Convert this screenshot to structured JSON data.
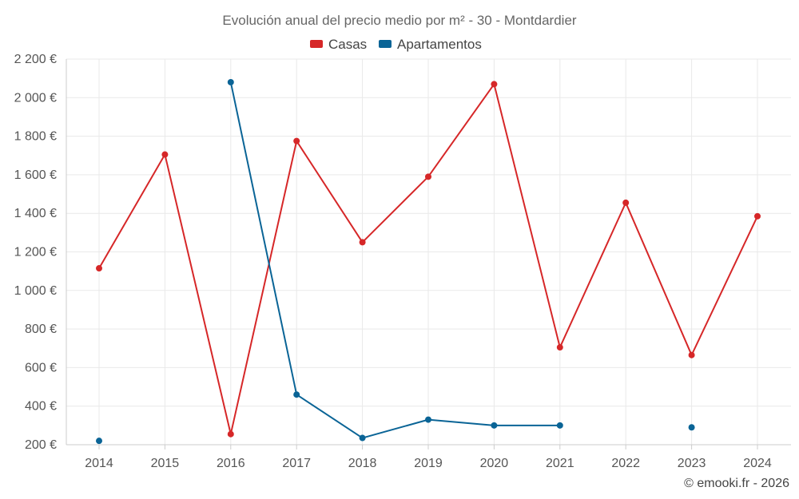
{
  "chart_data": {
    "type": "line",
    "title": "Evolución anual del precio medio por m² - 30 - Montdardier",
    "x": [
      "2014",
      "2015",
      "2016",
      "2017",
      "2018",
      "2019",
      "2020",
      "2021",
      "2022",
      "2023",
      "2024"
    ],
    "ylim": [
      200,
      2200
    ],
    "yticks": [
      200,
      400,
      600,
      800,
      1000,
      1200,
      1400,
      1600,
      1800,
      2000,
      2200
    ],
    "ytick_labels": [
      "200 €",
      "400 €",
      "600 €",
      "800 €",
      "1 000 €",
      "1 200 €",
      "1 400 €",
      "1 600 €",
      "1 800 €",
      "2 000 €",
      "2 200 €"
    ],
    "grid": true,
    "legend_position": "top-center",
    "series": [
      {
        "name": "Casas",
        "color": "#d62728",
        "values": [
          1115,
          1705,
          255,
          1775,
          1250,
          1590,
          2070,
          705,
          1455,
          665,
          1385
        ]
      },
      {
        "name": "Apartamentos",
        "color": "#0a6496",
        "values": [
          220,
          null,
          2080,
          460,
          235,
          330,
          300,
          300,
          null,
          290,
          null
        ]
      }
    ],
    "credit": "© emooki.fr - 2026"
  }
}
